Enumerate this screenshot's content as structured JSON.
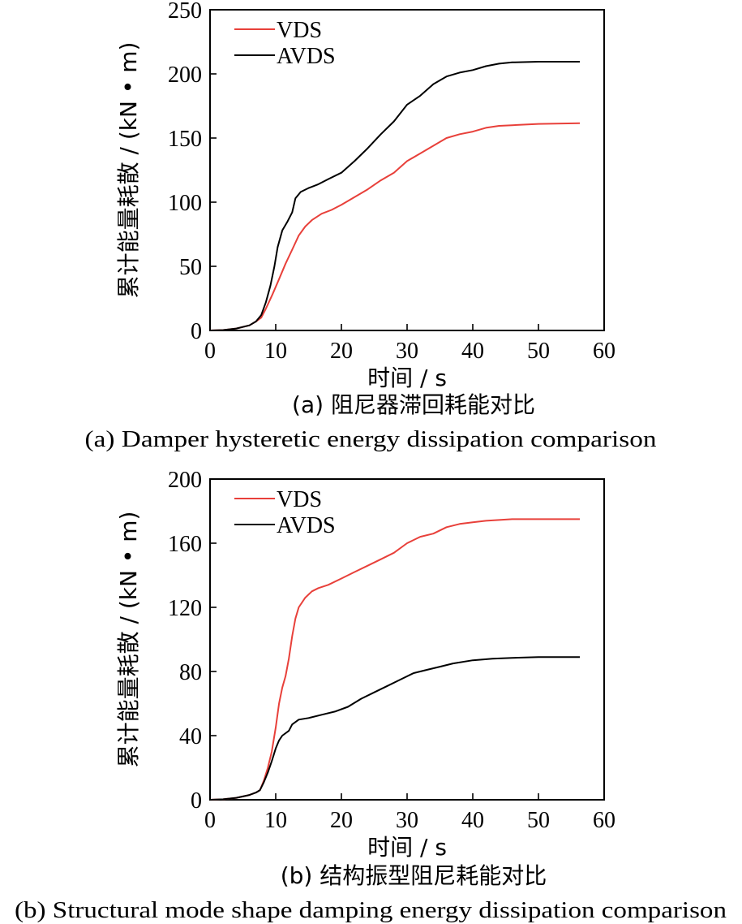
{
  "chart_data": [
    {
      "type": "line",
      "xlabel": "时间 / s",
      "ylabel": "累计能量耗散 / (kN • m)",
      "caption_cn": "(a) 阻尼器滞回耗能对比",
      "caption_en": "(a) Damper hysteretic energy dissipation comparison",
      "xlim": [
        0,
        60
      ],
      "ylim": [
        0,
        250
      ],
      "xticks": [
        0,
        10,
        20,
        30,
        40,
        50,
        60
      ],
      "yticks": [
        0,
        50,
        100,
        150,
        200,
        250
      ],
      "legend_position": "top-left",
      "series": [
        {
          "name": "VDS",
          "color": "#e8403a",
          "points": [
            [
              0,
              0
            ],
            [
              2,
              0.3
            ],
            [
              4,
              1.5
            ],
            [
              6,
              4
            ],
            [
              7,
              7
            ],
            [
              7.8,
              10
            ],
            [
              8.5,
              17
            ],
            [
              9.5,
              28
            ],
            [
              10.5,
              40
            ],
            [
              11.5,
              52
            ],
            [
              12.5,
              63
            ],
            [
              13.5,
              74
            ],
            [
              14.5,
              81
            ],
            [
              15.5,
              86
            ],
            [
              17,
              91
            ],
            [
              18.5,
              94
            ],
            [
              20,
              98
            ],
            [
              22,
              104
            ],
            [
              24,
              110
            ],
            [
              26,
              117
            ],
            [
              28,
              123
            ],
            [
              30,
              132
            ],
            [
              32,
              138
            ],
            [
              34,
              144
            ],
            [
              36,
              150
            ],
            [
              38,
              153
            ],
            [
              40,
              155
            ],
            [
              42,
              158
            ],
            [
              44,
              159.5
            ],
            [
              46,
              160
            ],
            [
              50,
              161
            ],
            [
              56.3,
              161.5
            ]
          ]
        },
        {
          "name": "AVDS",
          "color": "#000000",
          "points": [
            [
              0,
              0
            ],
            [
              2,
              0.3
            ],
            [
              4,
              1.5
            ],
            [
              6,
              4
            ],
            [
              7,
              7
            ],
            [
              7.8,
              12
            ],
            [
              8.5,
              22
            ],
            [
              9.2,
              35
            ],
            [
              9.8,
              50
            ],
            [
              10.3,
              65
            ],
            [
              11,
              78
            ],
            [
              11.8,
              85
            ],
            [
              12.5,
              92
            ],
            [
              13,
              103
            ],
            [
              13.8,
              108
            ],
            [
              15,
              111
            ],
            [
              16.5,
              114
            ],
            [
              18,
              118
            ],
            [
              20,
              123
            ],
            [
              22,
              132
            ],
            [
              24,
              142
            ],
            [
              26,
              153
            ],
            [
              28,
              163
            ],
            [
              30,
              176
            ],
            [
              32,
              183
            ],
            [
              34,
              192
            ],
            [
              36,
              198
            ],
            [
              38,
              201
            ],
            [
              40,
              203
            ],
            [
              42,
              206
            ],
            [
              44,
              208
            ],
            [
              46,
              209
            ],
            [
              50,
              209.5
            ],
            [
              56.3,
              209.5
            ]
          ]
        }
      ]
    },
    {
      "type": "line",
      "xlabel": "时间 / s",
      "ylabel": "累计能量耗散 / (kN • m)",
      "caption_cn": "(b) 结构振型阻尼耗能对比",
      "caption_en": "(b) Structural mode shape damping energy dissipation comparison",
      "xlim": [
        0,
        60
      ],
      "ylim": [
        0,
        200
      ],
      "xticks": [
        0,
        10,
        20,
        30,
        40,
        50,
        60
      ],
      "yticks": [
        0,
        40,
        80,
        120,
        160,
        200
      ],
      "legend_position": "top-left",
      "series": [
        {
          "name": "VDS",
          "color": "#e8403a",
          "points": [
            [
              0,
              0
            ],
            [
              2,
              0.3
            ],
            [
              4,
              1.2
            ],
            [
              6,
              3
            ],
            [
              7,
              4.5
            ],
            [
              7.6,
              6
            ],
            [
              8.2,
              12
            ],
            [
              8.8,
              20
            ],
            [
              9.4,
              30
            ],
            [
              10,
              45
            ],
            [
              10.5,
              60
            ],
            [
              11,
              70
            ],
            [
              11.5,
              77
            ],
            [
              12,
              88
            ],
            [
              12.5,
              102
            ],
            [
              13,
              113
            ],
            [
              13.5,
              120
            ],
            [
              14.5,
              126
            ],
            [
              15.5,
              130
            ],
            [
              16.5,
              132
            ],
            [
              18,
              134
            ],
            [
              20,
              138
            ],
            [
              22,
              142
            ],
            [
              24,
              146
            ],
            [
              26,
              150
            ],
            [
              28,
              154
            ],
            [
              30,
              160
            ],
            [
              32,
              164
            ],
            [
              34,
              166
            ],
            [
              36,
              170
            ],
            [
              38,
              172
            ],
            [
              40,
              173
            ],
            [
              42,
              174
            ],
            [
              44,
              174.5
            ],
            [
              46,
              175
            ],
            [
              50,
              175
            ],
            [
              56.3,
              175
            ]
          ]
        },
        {
          "name": "AVDS",
          "color": "#000000",
          "points": [
            [
              0,
              0
            ],
            [
              2,
              0.3
            ],
            [
              4,
              1.2
            ],
            [
              6,
              3
            ],
            [
              7,
              4.5
            ],
            [
              7.6,
              6
            ],
            [
              8.2,
              11
            ],
            [
              8.8,
              17
            ],
            [
              9.4,
              24
            ],
            [
              10,
              32
            ],
            [
              10.5,
              37
            ],
            [
              11,
              40
            ],
            [
              12,
              43
            ],
            [
              12.5,
              47
            ],
            [
              13.5,
              50
            ],
            [
              15,
              51
            ],
            [
              17,
              53
            ],
            [
              19,
              55
            ],
            [
              21,
              58
            ],
            [
              23,
              63
            ],
            [
              25,
              67
            ],
            [
              27,
              71
            ],
            [
              29,
              75
            ],
            [
              31,
              79
            ],
            [
              33,
              81
            ],
            [
              35,
              83
            ],
            [
              37,
              85
            ],
            [
              40,
              87
            ],
            [
              43,
              88
            ],
            [
              46,
              88.5
            ],
            [
              50,
              89
            ],
            [
              56.3,
              89
            ]
          ]
        }
      ]
    }
  ]
}
